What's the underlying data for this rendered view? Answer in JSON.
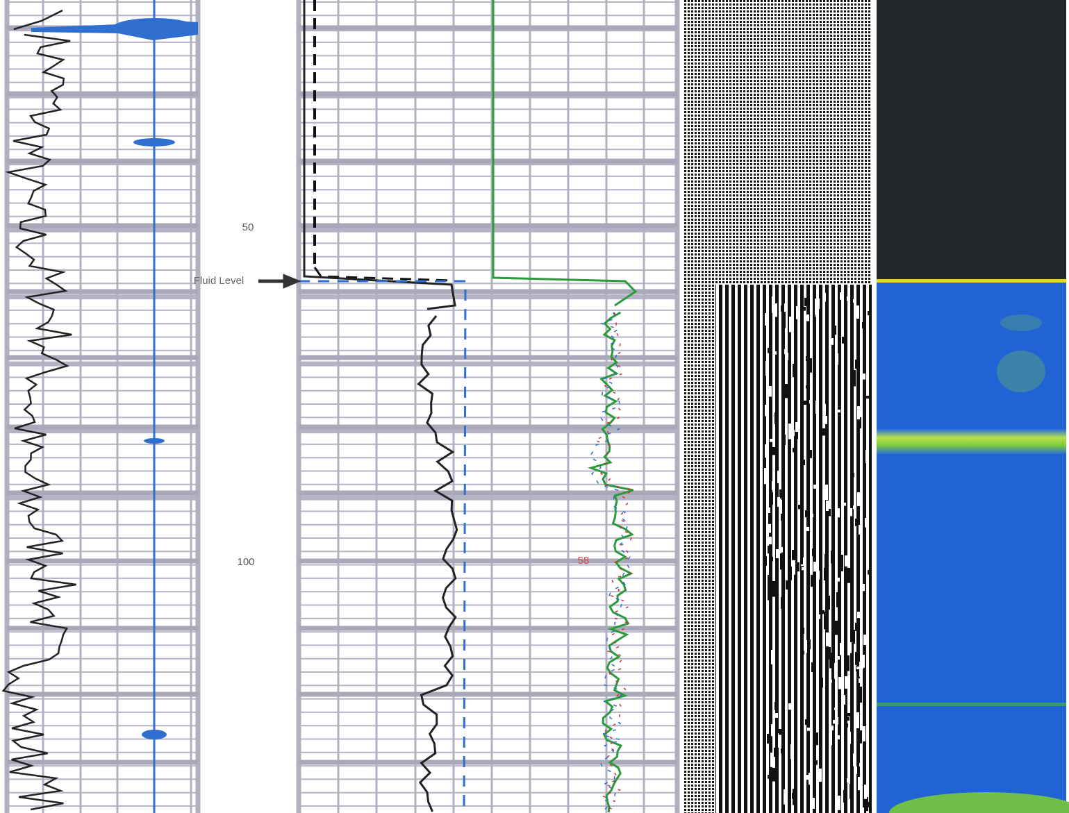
{
  "depth_labels": [
    50,
    100
  ],
  "annotation": "Fluid Level",
  "marker": 58
}
